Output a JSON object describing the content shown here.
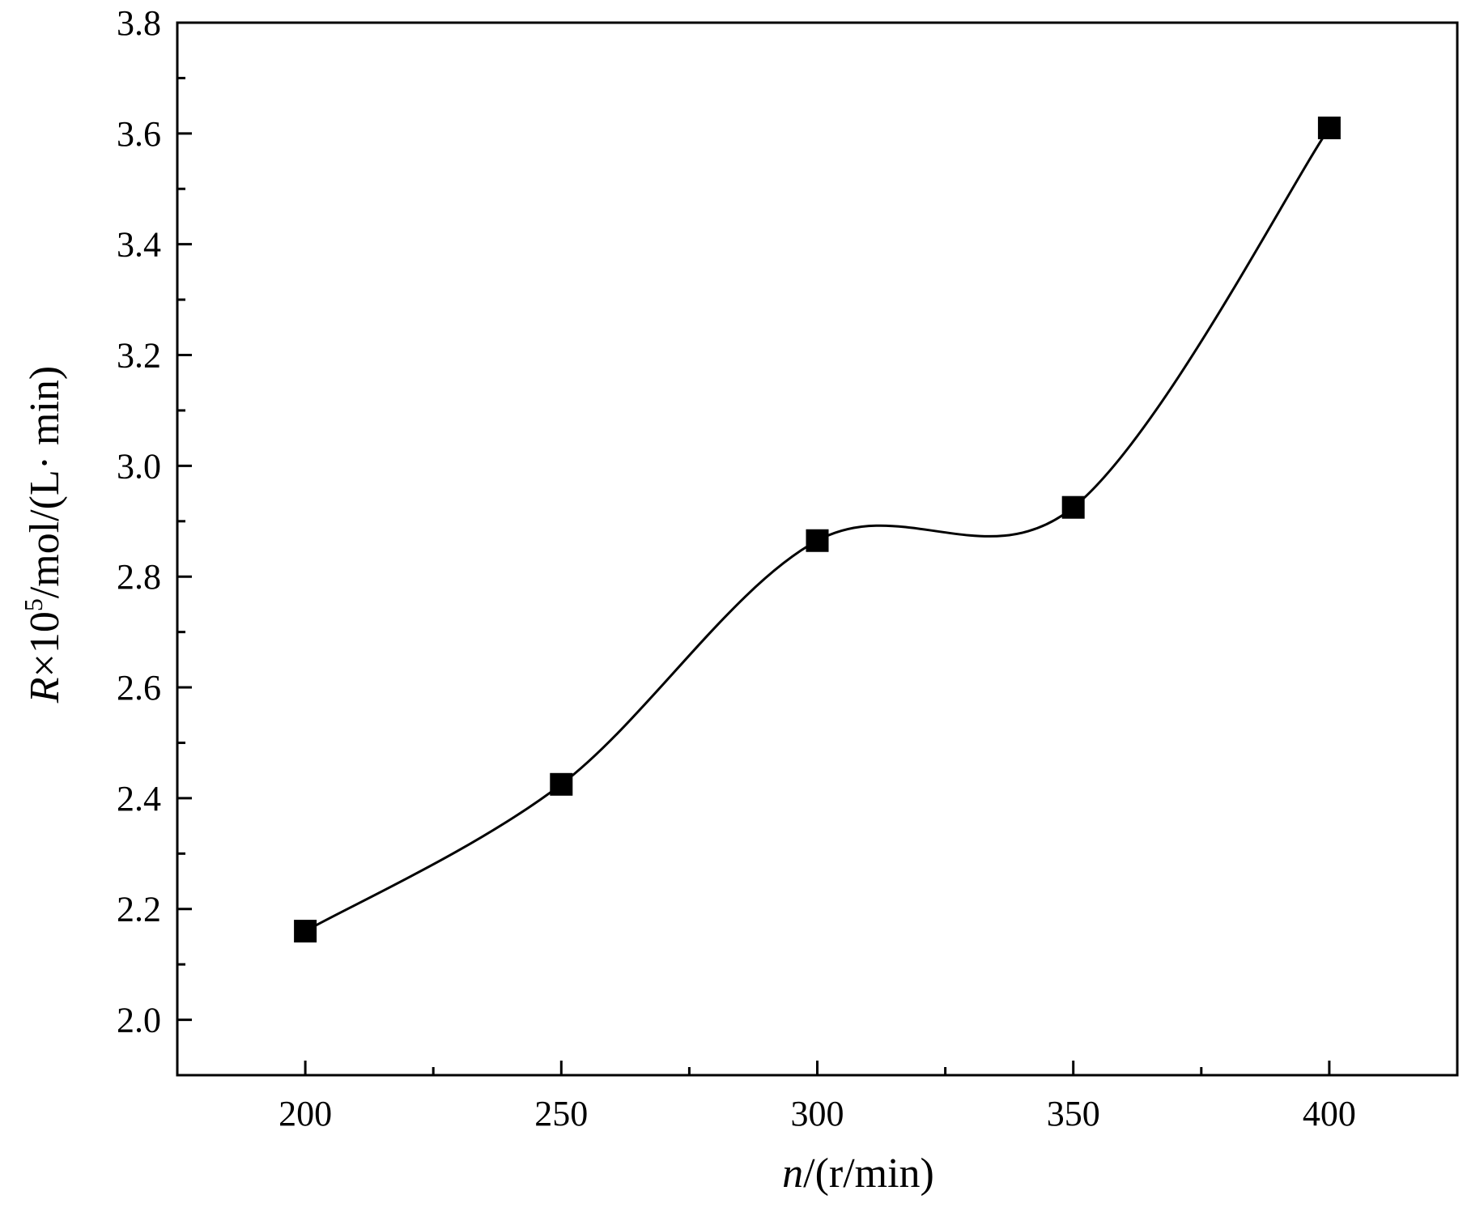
{
  "chart_data": {
    "type": "line",
    "title": "",
    "xlabel": {
      "italic": "n",
      "rest": "/(r/min)"
    },
    "ylabel": {
      "italic": "R",
      "times": "×",
      "mantissa": "10",
      "exponent": "5",
      "rest": "/mol/(L· min)"
    },
    "x": [
      200,
      250,
      300,
      350,
      400
    ],
    "series": [
      {
        "name": "",
        "marker": "filled-square",
        "line": "smooth-spline",
        "values": [
          2.16,
          2.425,
          2.865,
          2.925,
          3.61
        ]
      }
    ],
    "xlim": [
      175,
      425
    ],
    "ylim": [
      1.9,
      3.8
    ],
    "xticks": [
      "200",
      "250",
      "300",
      "350",
      "400"
    ],
    "yticks": [
      "2.0",
      "2.2",
      "2.4",
      "2.6",
      "2.8",
      "3.0",
      "3.2",
      "3.4",
      "3.6",
      "3.8"
    ],
    "grid": false,
    "legend": "none",
    "colors": {
      "line": "#000000",
      "marker": "#000000",
      "axes": "#000000",
      "background": "#ffffff"
    }
  }
}
